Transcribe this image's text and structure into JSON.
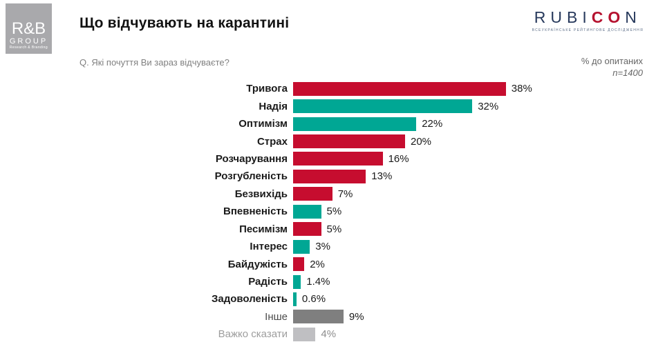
{
  "header": {
    "title": "Що відчувають на карантині",
    "question": "Q. Які почуття Ви зараз відчуваєте?",
    "note": "% до опитаних",
    "sample": "n=1400"
  },
  "logos": {
    "rb_group": {
      "line1": "R&B",
      "line2": "GROUP",
      "line3": "Research & Branding",
      "box_color": "#a9a9ac"
    },
    "rubicon": {
      "part1": "RUBI",
      "part2": "CO",
      "part3": "N",
      "tagline": "ВСЕУКРАЇНСЬКЕ РЕЙТИНГОВЕ ДОСЛІДЖЕННЯ",
      "navy": "#27395c",
      "red": "#b5122f"
    }
  },
  "chart_data": {
    "type": "bar",
    "orientation": "horizontal",
    "title": "Що відчувають на карантині",
    "unit": "%",
    "xlim": [
      0,
      40
    ],
    "grid": false,
    "legend": false,
    "categories": [
      "Тривога",
      "Надія",
      "Оптимізм",
      "Страх",
      "Розчарування",
      "Розгубленість",
      "Безвихідь",
      "Впевненість",
      "Песимізм",
      "Інтерес",
      "Байдужість",
      "Радість",
      "Задоволеність",
      "Інше",
      "Важко сказати"
    ],
    "values": [
      38,
      32,
      22,
      20,
      16,
      13,
      7,
      5,
      5,
      3,
      2,
      1.4,
      0.6,
      9,
      4
    ],
    "value_labels": [
      "38%",
      "32%",
      "22%",
      "20%",
      "16%",
      "13%",
      "7%",
      "5%",
      "5%",
      "3%",
      "2%",
      "1.4%",
      "0.6%",
      "9%",
      "4%"
    ],
    "bar_colors": [
      "red",
      "teal",
      "teal",
      "red",
      "red",
      "red",
      "red",
      "teal",
      "red",
      "teal",
      "red",
      "teal",
      "teal",
      "dark_gray",
      "light_gray"
    ],
    "label_variant": [
      "bold",
      "bold",
      "bold",
      "bold",
      "bold",
      "bold",
      "bold",
      "bold",
      "bold",
      "bold",
      "bold",
      "bold",
      "bold",
      "plain",
      "muted"
    ],
    "value_variant": [
      "normal",
      "normal",
      "normal",
      "normal",
      "normal",
      "normal",
      "normal",
      "normal",
      "normal",
      "normal",
      "normal",
      "normal",
      "normal",
      "normal",
      "muted"
    ],
    "palette": {
      "red": "#c60d2f",
      "teal": "#00a794",
      "dark_gray": "#7f7f7f",
      "light_gray": "#bfbfc2"
    }
  }
}
